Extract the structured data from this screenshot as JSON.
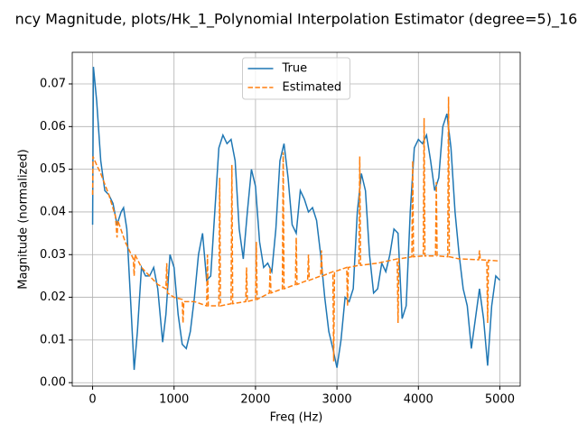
{
  "chart_data": {
    "type": "line",
    "title": "ncy Magnitude, plots/Hk_1_Polynomial Interpolation Estimator (degree=5)_16",
    "xlabel": "Freq (Hz)",
    "ylabel": "Magnitude (normalized)",
    "xlim": [
      -250,
      5250
    ],
    "xticks": [
      0,
      1000,
      2000,
      3000,
      4000,
      5000
    ],
    "ylim": [
      -0.0008,
      0.0774
    ],
    "yticks": [
      {
        "value": 0,
        "label": "0.00"
      },
      0.01,
      0.02,
      0.03,
      0.04,
      0.05,
      0.06,
      0.07
    ],
    "grid": true,
    "legend": "upper center",
    "series": [
      {
        "name": "True",
        "color": "#1f77b4",
        "dash": "solid",
        "x": [
          0,
          10,
          50,
          100,
          150,
          200,
          250,
          300,
          350,
          380,
          420,
          470,
          510,
          550,
          600,
          650,
          700,
          750,
          800,
          860,
          900,
          950,
          1000,
          1050,
          1100,
          1150,
          1200,
          1250,
          1300,
          1350,
          1400,
          1450,
          1500,
          1550,
          1600,
          1650,
          1700,
          1750,
          1800,
          1850,
          1900,
          1950,
          2000,
          2050,
          2100,
          2150,
          2200,
          2250,
          2300,
          2350,
          2400,
          2450,
          2500,
          2550,
          2600,
          2650,
          2700,
          2750,
          2800,
          2850,
          2900,
          2950,
          3000,
          3050,
          3100,
          3150,
          3200,
          3250,
          3300,
          3350,
          3400,
          3450,
          3500,
          3550,
          3600,
          3650,
          3700,
          3750,
          3800,
          3850,
          3900,
          3950,
          4000,
          4050,
          4100,
          4150,
          4200,
          4250,
          4300,
          4350,
          4400,
          4450,
          4500,
          4550,
          4600,
          4650,
          4700,
          4750,
          4800,
          4850,
          4900,
          4950,
          5000
        ],
        "values": [
          0.037,
          0.074,
          0.066,
          0.052,
          0.045,
          0.044,
          0.042,
          0.037,
          0.04,
          0.041,
          0.036,
          0.018,
          0.003,
          0.012,
          0.027,
          0.025,
          0.025,
          0.027,
          0.022,
          0.0095,
          0.016,
          0.03,
          0.027,
          0.016,
          0.009,
          0.008,
          0.012,
          0.02,
          0.03,
          0.035,
          0.024,
          0.025,
          0.04,
          0.055,
          0.058,
          0.056,
          0.057,
          0.052,
          0.036,
          0.029,
          0.04,
          0.05,
          0.046,
          0.033,
          0.027,
          0.028,
          0.026,
          0.036,
          0.052,
          0.056,
          0.048,
          0.037,
          0.035,
          0.045,
          0.043,
          0.04,
          0.041,
          0.038,
          0.03,
          0.02,
          0.012,
          0.008,
          0.0035,
          0.01,
          0.02,
          0.019,
          0.022,
          0.04,
          0.049,
          0.045,
          0.03,
          0.021,
          0.022,
          0.028,
          0.026,
          0.03,
          0.036,
          0.035,
          0.015,
          0.018,
          0.04,
          0.055,
          0.057,
          0.056,
          0.058,
          0.052,
          0.045,
          0.048,
          0.06,
          0.063,
          0.055,
          0.04,
          0.03,
          0.022,
          0.018,
          0.008,
          0.015,
          0.022,
          0.015,
          0.004,
          0.018,
          0.025,
          0.024
        ]
      },
      {
        "name": "Estimated",
        "color": "#ff7f0e",
        "dash": "dashed",
        "x": [
          0,
          5,
          50,
          100,
          200,
          280,
          300,
          310,
          400,
          500,
          510,
          520,
          600,
          700,
          800,
          900,
          910,
          920,
          1000,
          1100,
          1110,
          1120,
          1250,
          1400,
          1410,
          1420,
          1550,
          1560,
          1570,
          1700,
          1710,
          1720,
          1880,
          1890,
          1900,
          2000,
          2010,
          2020,
          2170,
          2180,
          2190,
          2330,
          2340,
          2350,
          2490,
          2500,
          2510,
          2640,
          2650,
          2660,
          2800,
          2810,
          2820,
          2950,
          2960,
          2970,
          3120,
          3130,
          3140,
          3270,
          3280,
          3290,
          3500,
          3740,
          3750,
          3760,
          3920,
          3930,
          3940,
          4060,
          4070,
          4080,
          4210,
          4220,
          4230,
          4360,
          4370,
          4380,
          4500,
          4740,
          4750,
          4760,
          4840,
          4850,
          4860,
          5000
        ],
        "values": [
          0.044,
          0.053,
          0.051,
          0.049,
          0.044,
          0.039,
          0.034,
          0.038,
          0.033,
          0.029,
          0.025,
          0.03,
          0.027,
          0.025,
          0.023,
          0.022,
          0.028,
          0.021,
          0.02,
          0.0195,
          0.014,
          0.019,
          0.019,
          0.018,
          0.03,
          0.018,
          0.018,
          0.048,
          0.018,
          0.0185,
          0.051,
          0.0185,
          0.019,
          0.027,
          0.019,
          0.0195,
          0.033,
          0.0195,
          0.021,
          0.027,
          0.021,
          0.022,
          0.054,
          0.022,
          0.023,
          0.034,
          0.023,
          0.024,
          0.03,
          0.024,
          0.025,
          0.031,
          0.025,
          0.026,
          0.005,
          0.026,
          0.027,
          0.018,
          0.027,
          0.0275,
          0.053,
          0.0275,
          0.028,
          0.029,
          0.014,
          0.029,
          0.0295,
          0.052,
          0.0295,
          0.0297,
          0.062,
          0.0297,
          0.0297,
          0.047,
          0.0297,
          0.0295,
          0.067,
          0.0295,
          0.029,
          0.0288,
          0.031,
          0.0288,
          0.0287,
          0.014,
          0.0287,
          0.0285
        ]
      }
    ]
  }
}
